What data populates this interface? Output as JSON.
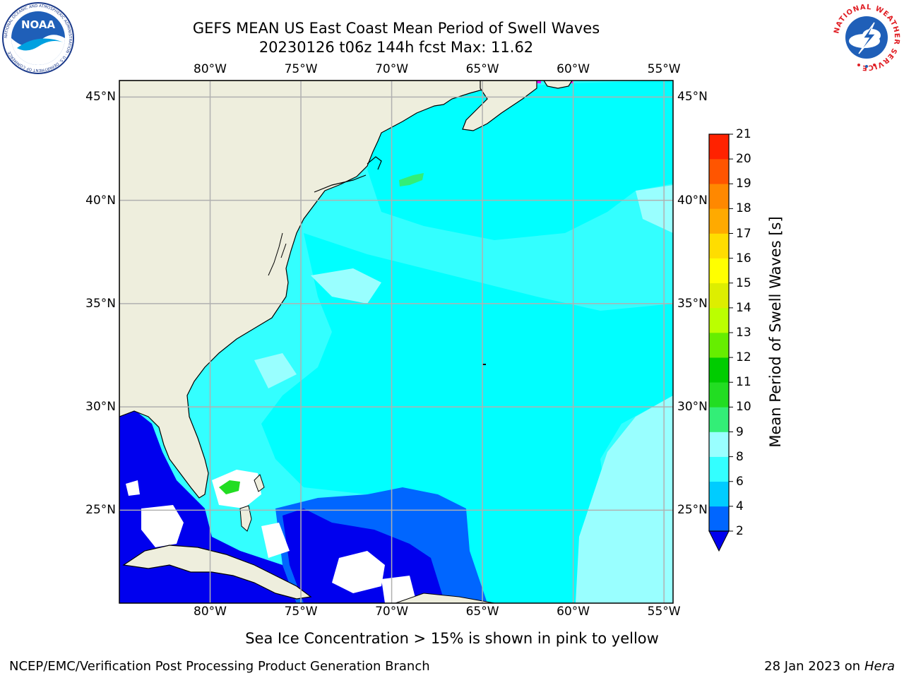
{
  "header": {
    "title_line1": "GEFS MEAN US East Coast Mean Period of Swell Waves",
    "title_line2": "20230126 t06z 144h fcst   Max: 11.62"
  },
  "logos": {
    "noaa": {
      "text": "NOAA",
      "ring_text": "NATIONAL OCEANIC AND ATMOSPHERIC ADMINISTRATION · U.S. DEPARTMENT OF COMMERCE"
    },
    "nws": {
      "ring_text": "NATIONAL WEATHER SERVICE"
    }
  },
  "map": {
    "lon_labels": [
      "80°W",
      "75°W",
      "70°W",
      "65°W",
      "60°W",
      "55°W"
    ],
    "lat_labels": [
      "45°N",
      "40°N",
      "35°N",
      "30°N",
      "25°N"
    ],
    "lon_range": [
      -85,
      -54.5
    ],
    "lat_range": [
      20.5,
      45.8
    ],
    "land_color": "#eeeedd",
    "grid_color": "#b0b0b0"
  },
  "colorbar": {
    "label": "Mean Period of Swell Waves [s]",
    "ticks": [
      "2",
      "4",
      "6",
      "8",
      "9",
      "10",
      "11",
      "12",
      "13",
      "14",
      "15",
      "16",
      "17",
      "18",
      "19",
      "20",
      "21"
    ],
    "colors": [
      "#0066ff",
      "#00ccff",
      "#33ffff",
      "#99ffff",
      "#33ee77",
      "#22dd22",
      "#00cc00",
      "#66ee00",
      "#bbff00",
      "#ddee00",
      "#ffff00",
      "#ffdd00",
      "#ffaa00",
      "#ff8800",
      "#ff5500",
      "#ff2200"
    ],
    "under_color": "#0000ee"
  },
  "field_colors": {
    "deep_blue": "#0000ee",
    "mid_blue": "#0066ff",
    "cyan": "#00ffff",
    "light_cyan": "#33ffff",
    "pale_cyan": "#99ffff",
    "green": "#33ee77",
    "bright_green": "#22dd22",
    "ice_magenta": "#ff00ff"
  },
  "footer": {
    "ice_note": "Sea Ice Concentration > 15% is shown in pink to yellow",
    "org": "NCEP/EMC/Verification Post Processing Product Generation Branch",
    "date": "28 Jan 2023 on ",
    "machine": "Hera"
  }
}
